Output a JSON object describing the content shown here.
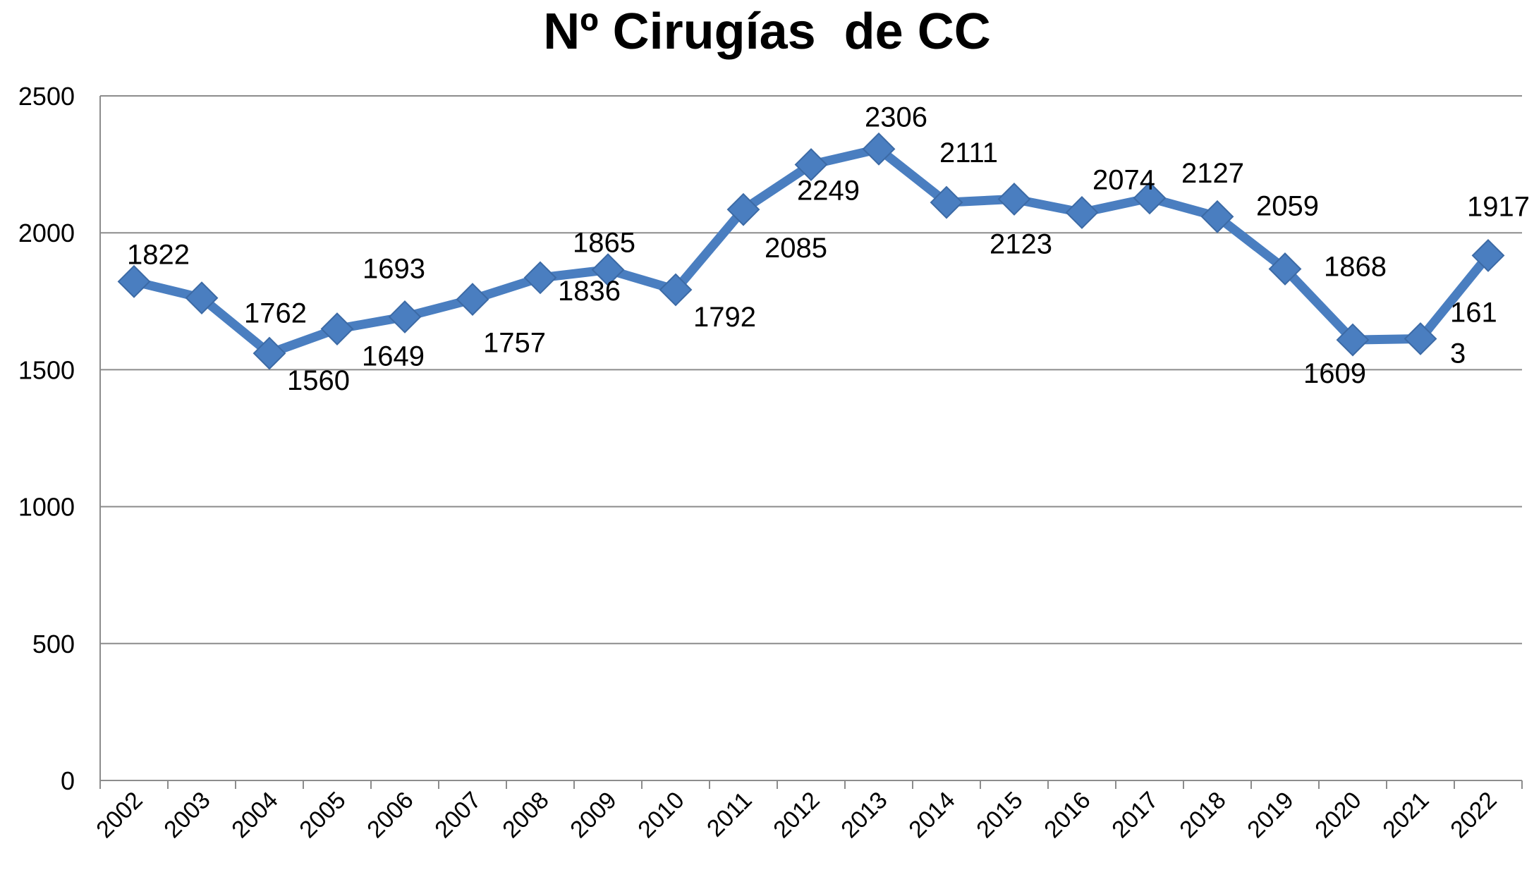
{
  "chart_data": {
    "type": "line",
    "title": "Nº Cirugías  de CC",
    "xlabel": "",
    "ylabel": "",
    "ylim": [
      0,
      2500
    ],
    "yticks": [
      "0",
      "500",
      "1000",
      "1500",
      "2000",
      "2500"
    ],
    "grid": "horizontal",
    "legend": "none",
    "categories": [
      "2002",
      "2003",
      "2004",
      "2005",
      "2006",
      "2007",
      "2008",
      "2009",
      "2010",
      "2011",
      "2012",
      "2013",
      "2014",
      "2015",
      "2016",
      "2017",
      "2018",
      "2019",
      "2020",
      "2021",
      "2022"
    ],
    "series": [
      {
        "values": [
          1822,
          1762,
          1560,
          1649,
          1693,
          1757,
          1836,
          1865,
          1792,
          2085,
          2249,
          2306,
          2111,
          2123,
          2074,
          2127,
          2059,
          1868,
          1609,
          1613,
          1917
        ],
        "labels": [
          "1822",
          "1762",
          "1560",
          "1649",
          "1693",
          "1757",
          "1836",
          "1865",
          "1792",
          "2085",
          "2249",
          "2306",
          "2111",
          "2123",
          "2074",
          "2127",
          "2059",
          "1868",
          "1609",
          "161\n3",
          "1917"
        ],
        "color": "#4A7EC0"
      }
    ]
  }
}
